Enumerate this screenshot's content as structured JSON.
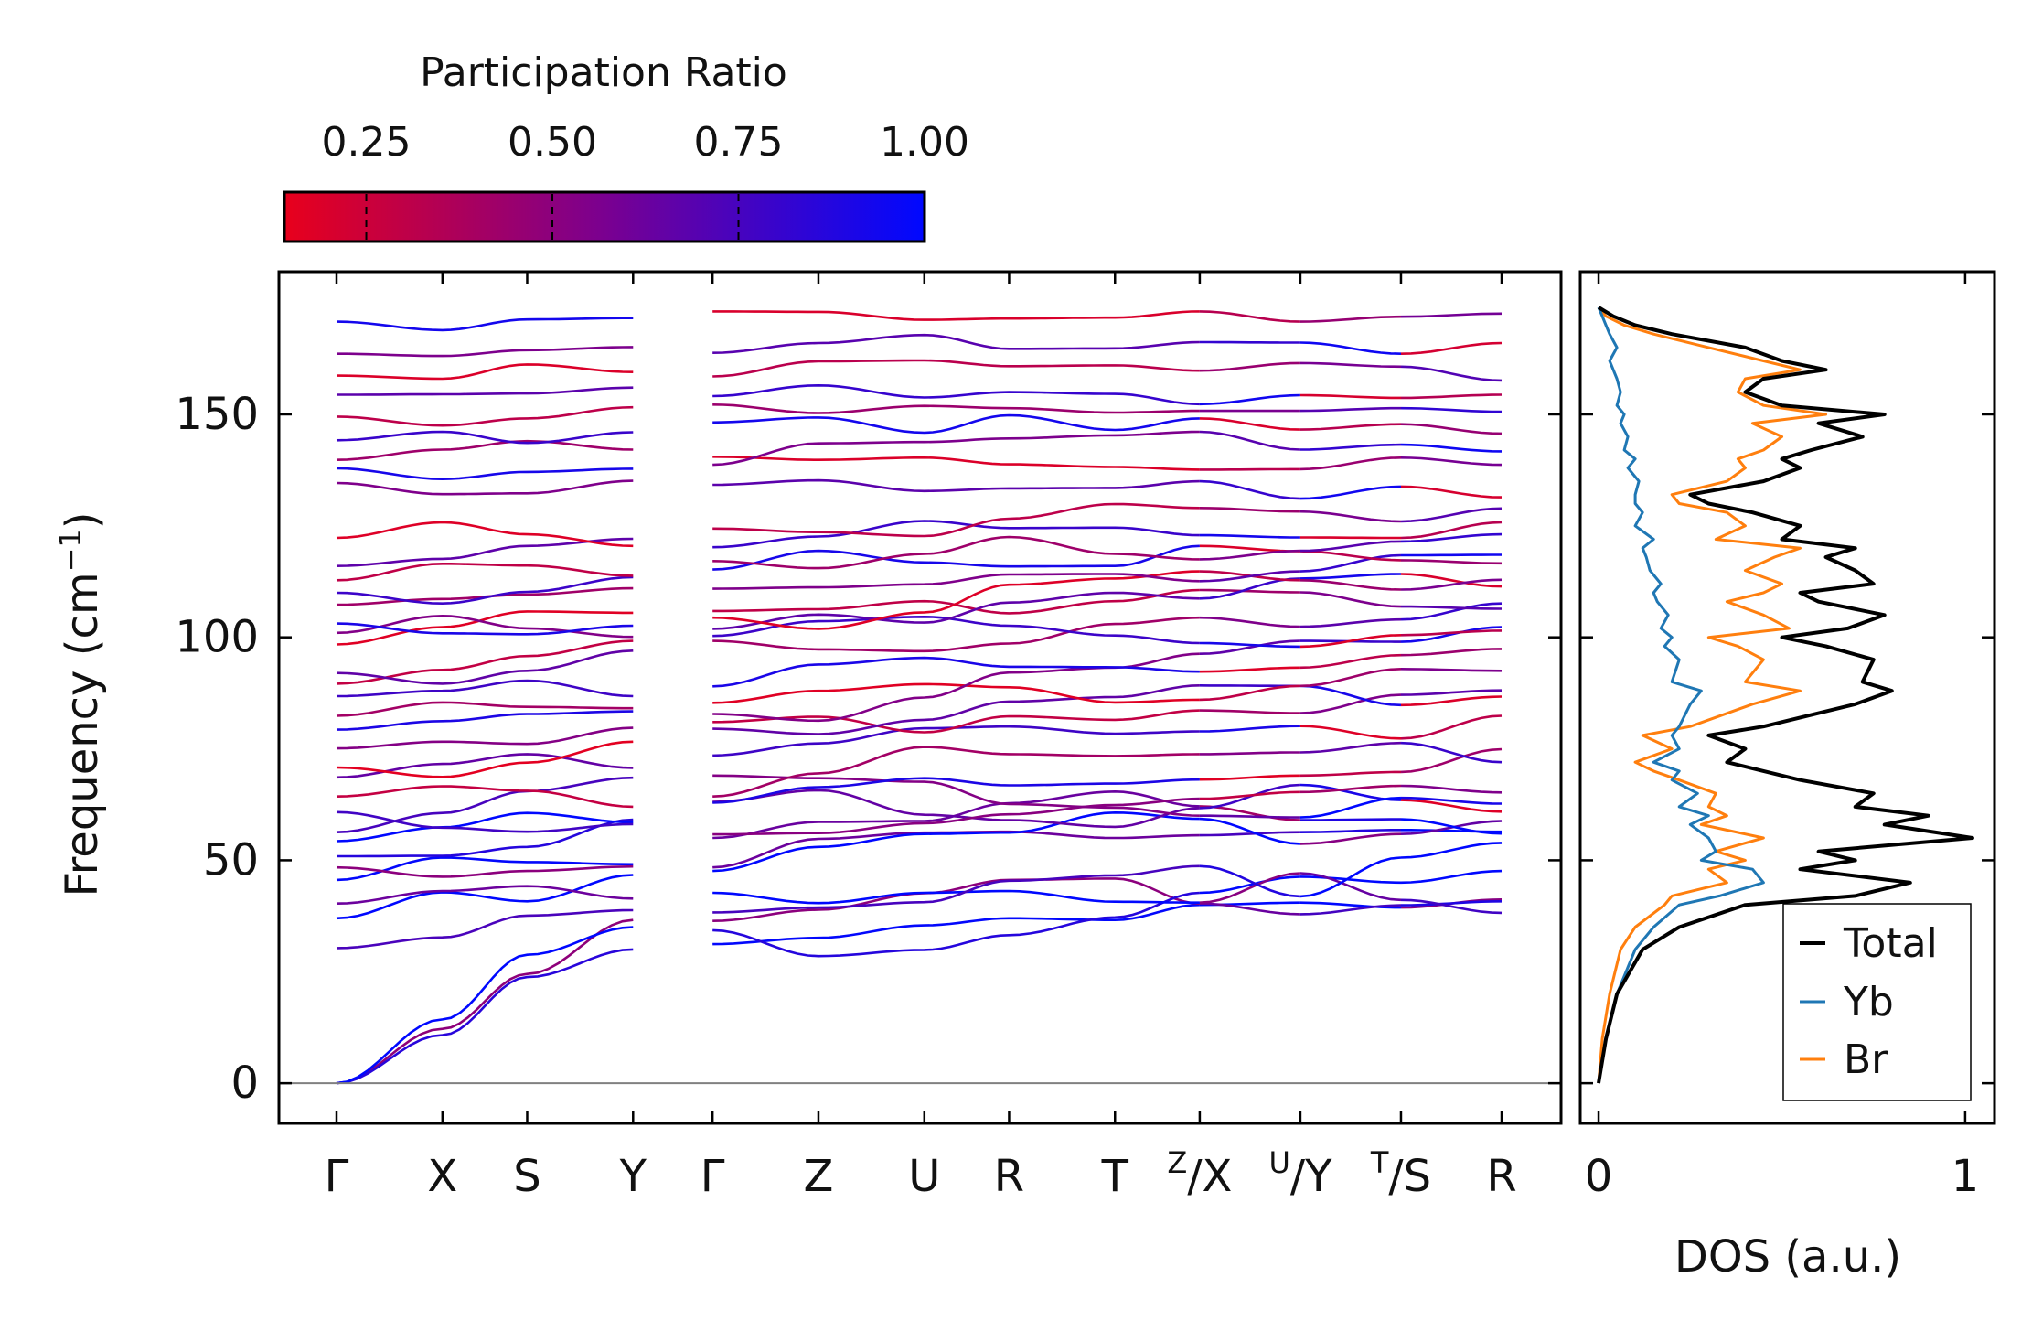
{
  "chart_data": [
    {
      "id": "bands",
      "type": "line",
      "title": "",
      "ylabel": "Frequency (cm",
      "ylabel_sup": "−1",
      "ylabel_tail": ")",
      "ylim": [
        -9,
        182
      ],
      "yticks": [
        0,
        50,
        100,
        150
      ],
      "segments": [
        {
          "labels": [
            "Γ",
            "X",
            "S",
            "Y"
          ],
          "x": [
            0,
            1.0,
            1.8,
            2.8
          ]
        },
        {
          "labels": [
            "Γ",
            "Z",
            "U",
            "R",
            "T",
            "Z"
          ],
          "x": [
            3.55,
            4.55,
            5.55,
            6.35,
            7.35,
            8.15
          ]
        },
        {
          "labels": [
            "X",
            "U"
          ],
          "x": [
            8.15,
            9.1
          ]
        },
        {
          "labels": [
            "Y",
            "T"
          ],
          "x": [
            9.1,
            10.05
          ]
        },
        {
          "labels": [
            "S",
            "R"
          ],
          "x": [
            10.05,
            11.0
          ]
        }
      ],
      "tick_labels": [
        {
          "pos": 0,
          "text": "Γ"
        },
        {
          "pos": 1.0,
          "text": "X"
        },
        {
          "pos": 1.8,
          "text": "S"
        },
        {
          "pos": 2.8,
          "text": "Y"
        },
        {
          "pos": 3.55,
          "text": "Γ"
        },
        {
          "pos": 4.55,
          "text": "Z"
        },
        {
          "pos": 5.55,
          "text": "U"
        },
        {
          "pos": 6.35,
          "text": "R"
        },
        {
          "pos": 7.35,
          "text": "T"
        },
        {
          "pos": 8.15,
          "sup": "Z",
          "text": "/X"
        },
        {
          "pos": 9.1,
          "sup": "U",
          "text": "/Y"
        },
        {
          "pos": 10.05,
          "sup": "T",
          "text": "/S"
        },
        {
          "pos": 11.0,
          "text": "R"
        }
      ],
      "bands": [
        [
          0,
          12.2,
          24.5,
          36.6,
          48.4,
          54.8,
          56.2,
          56.4,
          55.0,
          55.6,
          56.3,
          56.8,
          56.4
        ],
        [
          0,
          10.8,
          23.8,
          30.0,
          31.2,
          32.6,
          35.4,
          37.0,
          36.6,
          40.0,
          40.5,
          39.4,
          41.2
        ],
        [
          0,
          14.3,
          28.8,
          35.0,
          36.4,
          38.9,
          42.6,
          45.6,
          45.9,
          40.3,
          37.9,
          39.9,
          40.8
        ],
        [
          30.3,
          32.7,
          37.6,
          38.8,
          34.3,
          28.5,
          29.9,
          33.2,
          37.2,
          42.7,
          46.3,
          45.0,
          47.6
        ],
        [
          37.0,
          42.8,
          40.8,
          46.7,
          42.7,
          40.4,
          42.7,
          43.1,
          40.7,
          40.5,
          47.1,
          41.1,
          38.2
        ],
        [
          40.3,
          43.1,
          44.2,
          41.4,
          38.3,
          39.4,
          40.6,
          45.4,
          46.6,
          48.7,
          41.9,
          50.6,
          53.9
        ],
        [
          45.6,
          50.6,
          49.6,
          49.1,
          47.6,
          53.0,
          55.9,
          56.2,
          60.7,
          59.3,
          53.7,
          55.9,
          58.8
        ],
        [
          48.4,
          46.3,
          47.6,
          48.6,
          55.0,
          58.6,
          58.8,
          62.8,
          65.4,
          62.1,
          59.0,
          59.2,
          56.0
        ],
        [
          50.9,
          51.0,
          53.0,
          59.1,
          63.1,
          65.7,
          60.2,
          59.0,
          57.5,
          61.7,
          66.9,
          63.5,
          60.9
        ],
        [
          54.3,
          57.4,
          60.6,
          58.5,
          55.8,
          56.1,
          58.3,
          60.3,
          62.4,
          63.8,
          65.3,
          66.7,
          65.2
        ],
        [
          56.3,
          60.6,
          65.5,
          68.5,
          69.0,
          68.4,
          67.6,
          62.6,
          61.8,
          60.0,
          59.6,
          64.0,
          62.7
        ],
        [
          60.8,
          57.3,
          56.4,
          58.1,
          62.9,
          66.4,
          68.4,
          66.8,
          67.2,
          68.1,
          69.0,
          69.8,
          74.9
        ],
        [
          64.3,
          66.6,
          65.6,
          62.0,
          64.3,
          69.5,
          75.4,
          73.8,
          73.4,
          73.8,
          74.2,
          76.3,
          72.0
        ],
        [
          68.6,
          71.6,
          73.8,
          70.7,
          73.5,
          76.2,
          79.6,
          80.0,
          78.4,
          78.9,
          80.1,
          77.3,
          82.4
        ],
        [
          70.8,
          68.7,
          71.9,
          76.6,
          81.0,
          82.2,
          78.7,
          82.3,
          81.5,
          83.6,
          83.0,
          87.1,
          88.1
        ],
        [
          75.1,
          76.6,
          76.1,
          79.7,
          79.5,
          78.3,
          81.5,
          85.6,
          86.6,
          89.2,
          89.1,
          84.8,
          86.7
        ],
        [
          79.3,
          81.2,
          82.8,
          83.4,
          85.3,
          88.0,
          89.5,
          88.8,
          85.4,
          86.0,
          89.1,
          92.9,
          92.5
        ],
        [
          82.4,
          85.4,
          84.4,
          84.1,
          82.8,
          81.3,
          86.5,
          92.1,
          93.2,
          96.3,
          99.2,
          99.0,
          102.3
        ],
        [
          86.8,
          88.0,
          90.3,
          86.8,
          89.0,
          93.9,
          95.4,
          93.4,
          93.3,
          92.3,
          93.2,
          96.0,
          97.4
        ],
        [
          89.6,
          92.7,
          95.8,
          99.2,
          99.2,
          97.3,
          96.9,
          98.6,
          103.0,
          104.4,
          102.4,
          104.0,
          107.6
        ],
        [
          92.0,
          89.6,
          92.5,
          97.0,
          100.3,
          103.6,
          104.6,
          102.6,
          100.4,
          98.7,
          97.9,
          100.5,
          101.5
        ],
        [
          98.4,
          102.3,
          105.8,
          105.5,
          105.9,
          106.3,
          108.1,
          105.4,
          108.1,
          110.6,
          110.1,
          106.9,
          106.4
        ],
        [
          101.0,
          104.8,
          102.0,
          100.1,
          101.9,
          105.1,
          103.3,
          107.8,
          110.0,
          108.7,
          113.2,
          114.2,
          111.4
        ],
        [
          103.1,
          100.9,
          100.7,
          102.6,
          104.4,
          101.9,
          105.6,
          111.8,
          113.2,
          114.8,
          112.8,
          110.7,
          112.9
        ],
        [
          107.3,
          108.6,
          109.6,
          111.0,
          110.9,
          111.2,
          111.9,
          114.1,
          114.2,
          112.6,
          114.8,
          118.4,
          118.5
        ],
        [
          110.0,
          107.6,
          110.2,
          113.5,
          115.2,
          119.4,
          116.8,
          115.9,
          116.0,
          120.5,
          119.3,
          117.3,
          116.6
        ],
        [
          112.8,
          116.5,
          116.1,
          113.8,
          117.1,
          115.5,
          118.7,
          122.5,
          118.7,
          117.5,
          119.4,
          121.5,
          123.1
        ],
        [
          116.0,
          117.6,
          120.5,
          122.1,
          120.2,
          122.6,
          126.1,
          124.5,
          124.6,
          122.9,
          122.4,
          122.3,
          125.8
        ],
        [
          122.3,
          125.8,
          123.1,
          120.5,
          124.4,
          123.6,
          122.7,
          126.6,
          129.9,
          129.0,
          128.2,
          126.0,
          128.9
        ],
        [
          134.6,
          132.1,
          132.3,
          135.1,
          134.2,
          135.2,
          132.8,
          133.4,
          133.5,
          135.0,
          131.1,
          133.8,
          131.4
        ],
        [
          137.9,
          135.5,
          137.1,
          137.8,
          140.5,
          139.8,
          140.3,
          138.8,
          138.2,
          137.6,
          137.7,
          140.3,
          138.7
        ],
        [
          139.8,
          142.1,
          144.0,
          142.1,
          138.7,
          143.5,
          143.8,
          144.6,
          145.3,
          146.1,
          142.1,
          143.2,
          141.7
        ],
        [
          144.2,
          146.1,
          143.6,
          146.0,
          148.2,
          149.3,
          145.9,
          149.8,
          146.5,
          149.1,
          146.6,
          147.8,
          145.7
        ],
        [
          149.5,
          147.5,
          149.1,
          151.6,
          152.2,
          150.3,
          151.9,
          151.4,
          150.4,
          150.8,
          150.8,
          151.4,
          150.6
        ],
        [
          154.4,
          154.5,
          154.7,
          156.0,
          154.1,
          156.5,
          153.8,
          155.0,
          154.6,
          152.3,
          154.3,
          153.7,
          154.4
        ],
        [
          158.7,
          158.0,
          161.2,
          159.5,
          158.5,
          161.9,
          162.1,
          160.8,
          161.0,
          159.8,
          161.5,
          160.7,
          157.6
        ],
        [
          163.6,
          163.1,
          164.4,
          165.1,
          163.8,
          166.0,
          167.8,
          164.7,
          164.8,
          166.2,
          166.1,
          163.6,
          166.0
        ],
        [
          170.8,
          168.9,
          171.3,
          171.6,
          173.1,
          173.0,
          171.2,
          171.5,
          171.7,
          173.1,
          170.8,
          171.9,
          172.6
        ]
      ]
    },
    {
      "id": "dos",
      "type": "line",
      "xlabel": "DOS (a.u.)",
      "xticks": [
        0,
        1
      ],
      "xlim": [
        -0.05,
        1.08
      ],
      "ylim": [
        -9,
        182
      ],
      "legend": "bottom-right",
      "series": [
        {
          "name": "Total",
          "color": "#000000",
          "width": 4,
          "y": [
            0,
            10,
            20,
            30,
            35,
            40,
            42,
            45,
            48,
            50,
            52,
            55,
            58,
            60,
            62,
            65,
            68,
            70,
            72,
            75,
            78,
            80,
            85,
            88,
            90,
            95,
            98,
            100,
            102,
            105,
            108,
            110,
            112,
            115,
            118,
            120,
            122,
            125,
            128,
            130,
            132,
            135,
            138,
            140,
            142,
            145,
            148,
            150,
            152,
            155,
            158,
            160,
            162,
            165,
            168,
            170,
            172,
            174
          ],
          "values": [
            0.0,
            0.02,
            0.05,
            0.12,
            0.22,
            0.4,
            0.7,
            0.85,
            0.55,
            0.7,
            0.6,
            1.02,
            0.78,
            0.9,
            0.7,
            0.75,
            0.55,
            0.45,
            0.35,
            0.4,
            0.3,
            0.45,
            0.7,
            0.8,
            0.72,
            0.75,
            0.62,
            0.5,
            0.68,
            0.78,
            0.6,
            0.55,
            0.75,
            0.7,
            0.62,
            0.7,
            0.5,
            0.55,
            0.42,
            0.3,
            0.25,
            0.45,
            0.55,
            0.5,
            0.58,
            0.72,
            0.6,
            0.78,
            0.5,
            0.4,
            0.45,
            0.62,
            0.5,
            0.4,
            0.2,
            0.1,
            0.04,
            0.0
          ]
        },
        {
          "name": "Yb",
          "color": "#1f77b4",
          "width": 3,
          "y": [
            0,
            10,
            20,
            30,
            35,
            40,
            42,
            45,
            48,
            50,
            52,
            55,
            58,
            60,
            62,
            65,
            68,
            70,
            72,
            75,
            78,
            80,
            85,
            88,
            90,
            95,
            98,
            100,
            102,
            105,
            108,
            110,
            112,
            115,
            118,
            120,
            122,
            125,
            128,
            130,
            132,
            135,
            138,
            140,
            142,
            145,
            148,
            150,
            152,
            155,
            158,
            160,
            162,
            165,
            168,
            170,
            172,
            174
          ],
          "values": [
            0.0,
            0.02,
            0.05,
            0.1,
            0.15,
            0.22,
            0.33,
            0.45,
            0.42,
            0.28,
            0.32,
            0.3,
            0.25,
            0.3,
            0.22,
            0.27,
            0.2,
            0.22,
            0.15,
            0.22,
            0.2,
            0.22,
            0.25,
            0.28,
            0.2,
            0.22,
            0.18,
            0.2,
            0.17,
            0.19,
            0.16,
            0.15,
            0.17,
            0.14,
            0.13,
            0.12,
            0.15,
            0.1,
            0.12,
            0.1,
            0.1,
            0.11,
            0.08,
            0.1,
            0.07,
            0.08,
            0.06,
            0.07,
            0.05,
            0.06,
            0.05,
            0.04,
            0.03,
            0.05,
            0.03,
            0.02,
            0.01,
            0.0
          ]
        },
        {
          "name": "Br",
          "color": "#ff7f0e",
          "width": 3,
          "y": [
            0,
            10,
            20,
            30,
            35,
            40,
            42,
            45,
            48,
            50,
            52,
            55,
            58,
            60,
            62,
            65,
            68,
            70,
            72,
            75,
            78,
            80,
            85,
            88,
            90,
            95,
            98,
            100,
            102,
            105,
            108,
            110,
            112,
            115,
            118,
            120,
            122,
            125,
            128,
            130,
            132,
            135,
            138,
            140,
            142,
            145,
            148,
            150,
            152,
            155,
            158,
            160,
            162,
            165,
            168,
            170,
            172,
            174
          ],
          "values": [
            0.0,
            0.01,
            0.03,
            0.06,
            0.1,
            0.18,
            0.2,
            0.35,
            0.3,
            0.4,
            0.32,
            0.45,
            0.28,
            0.35,
            0.3,
            0.32,
            0.22,
            0.15,
            0.1,
            0.2,
            0.12,
            0.25,
            0.42,
            0.55,
            0.4,
            0.45,
            0.38,
            0.3,
            0.52,
            0.45,
            0.35,
            0.45,
            0.5,
            0.4,
            0.48,
            0.55,
            0.32,
            0.4,
            0.35,
            0.22,
            0.2,
            0.35,
            0.4,
            0.38,
            0.45,
            0.5,
            0.42,
            0.62,
            0.45,
            0.38,
            0.4,
            0.55,
            0.45,
            0.3,
            0.15,
            0.07,
            0.02,
            0.0
          ]
        }
      ]
    },
    {
      "id": "colorbar",
      "type": "heatmap",
      "title": "Participation Ratio",
      "range": [
        0.14,
        1.0
      ],
      "ticks": [
        0.25,
        0.5,
        0.75,
        1.0
      ],
      "tick_labels": [
        "0.25",
        "0.50",
        "0.75",
        "1.00"
      ],
      "color_low": "#e8001c",
      "color_mid": "#7a0090",
      "color_high": "#0008ff"
    }
  ]
}
